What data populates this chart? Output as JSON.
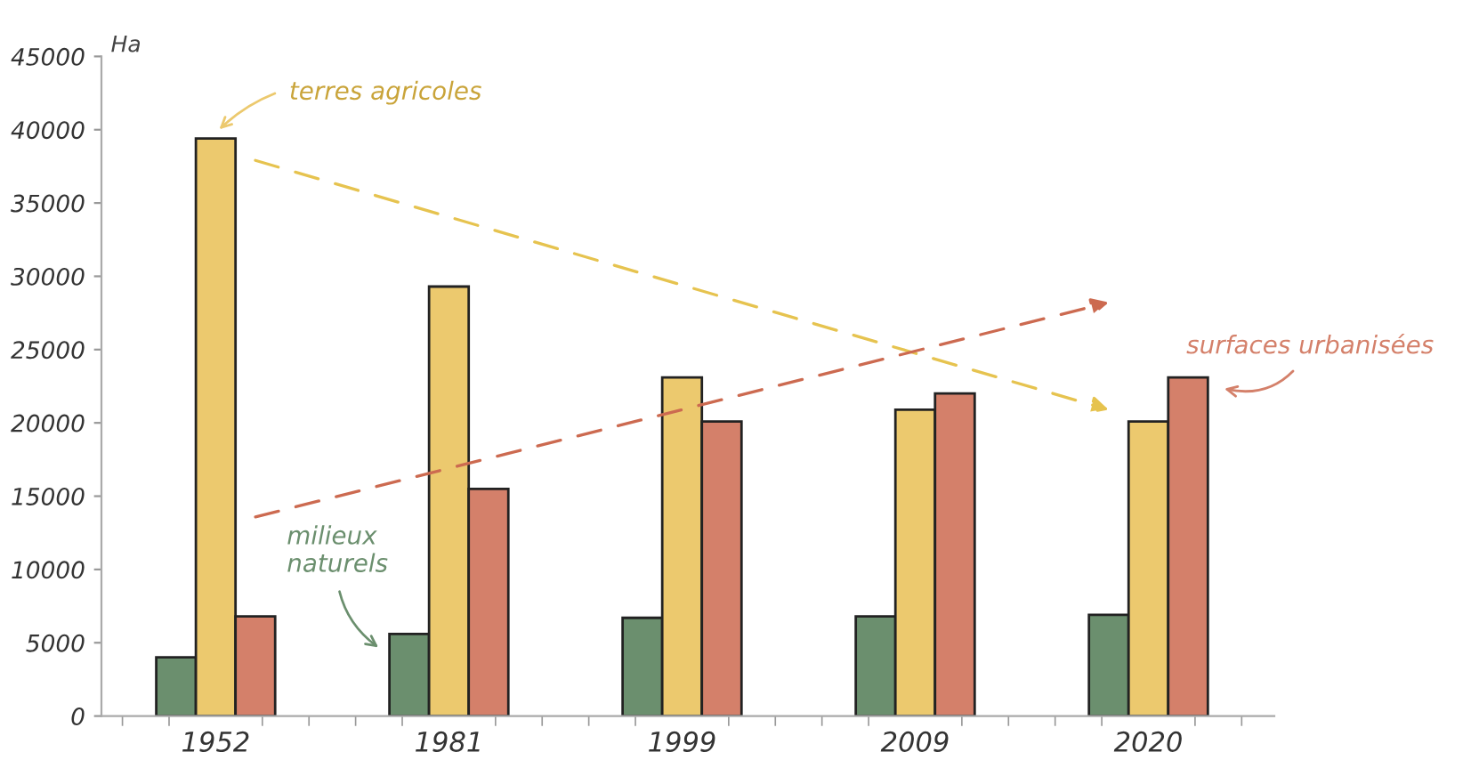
{
  "chart_data": {
    "type": "bar",
    "ylabel": "Ha",
    "categories": [
      "1952",
      "1981",
      "1999",
      "2009",
      "2020"
    ],
    "series": [
      {
        "name": "milieux naturels",
        "color": "#6b8f6e",
        "values": [
          4000,
          5600,
          6700,
          6800,
          6900
        ]
      },
      {
        "name": "terres agricoles",
        "color": "#ecc96e",
        "values": [
          39400,
          29300,
          23100,
          20900,
          20100
        ]
      },
      {
        "name": "surfaces urbanisées",
        "color": "#d4806a",
        "values": [
          6800,
          15500,
          20100,
          22000,
          23100
        ]
      }
    ],
    "ylim": [
      0,
      45000
    ],
    "yticks": [
      0,
      5000,
      10000,
      15000,
      20000,
      25000,
      30000,
      35000,
      40000,
      45000
    ],
    "grid": false
  }
}
